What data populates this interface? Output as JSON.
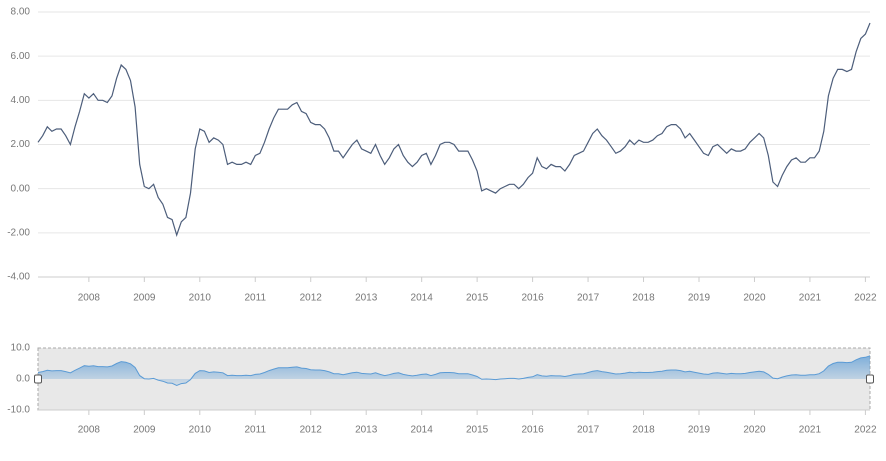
{
  "chart_data": {
    "type": "line",
    "x": [
      2007.083,
      2007.167,
      2007.25,
      2007.333,
      2007.417,
      2007.5,
      2007.583,
      2007.667,
      2007.75,
      2007.833,
      2007.917,
      2008.0,
      2008.083,
      2008.167,
      2008.25,
      2008.333,
      2008.417,
      2008.5,
      2008.583,
      2008.667,
      2008.75,
      2008.833,
      2008.917,
      2009.0,
      2009.083,
      2009.167,
      2009.25,
      2009.333,
      2009.417,
      2009.5,
      2009.583,
      2009.667,
      2009.75,
      2009.833,
      2009.917,
      2010.0,
      2010.083,
      2010.167,
      2010.25,
      2010.333,
      2010.417,
      2010.5,
      2010.583,
      2010.667,
      2010.75,
      2010.833,
      2010.917,
      2011.0,
      2011.083,
      2011.167,
      2011.25,
      2011.333,
      2011.417,
      2011.5,
      2011.583,
      2011.667,
      2011.75,
      2011.833,
      2011.917,
      2012.0,
      2012.083,
      2012.167,
      2012.25,
      2012.333,
      2012.417,
      2012.5,
      2012.583,
      2012.667,
      2012.75,
      2012.833,
      2012.917,
      2013.0,
      2013.083,
      2013.167,
      2013.25,
      2013.333,
      2013.417,
      2013.5,
      2013.583,
      2013.667,
      2013.75,
      2013.833,
      2013.917,
      2014.0,
      2014.083,
      2014.167,
      2014.25,
      2014.333,
      2014.417,
      2014.5,
      2014.583,
      2014.667,
      2014.75,
      2014.833,
      2014.917,
      2015.0,
      2015.083,
      2015.167,
      2015.25,
      2015.333,
      2015.417,
      2015.5,
      2015.583,
      2015.667,
      2015.75,
      2015.833,
      2015.917,
      2016.0,
      2016.083,
      2016.167,
      2016.25,
      2016.333,
      2016.417,
      2016.5,
      2016.583,
      2016.667,
      2016.75,
      2016.833,
      2016.917,
      2017.0,
      2017.083,
      2017.167,
      2017.25,
      2017.333,
      2017.417,
      2017.5,
      2017.583,
      2017.667,
      2017.75,
      2017.833,
      2017.917,
      2018.0,
      2018.083,
      2018.167,
      2018.25,
      2018.333,
      2018.417,
      2018.5,
      2018.583,
      2018.667,
      2018.75,
      2018.833,
      2018.917,
      2019.0,
      2019.083,
      2019.167,
      2019.25,
      2019.333,
      2019.417,
      2019.5,
      2019.583,
      2019.667,
      2019.75,
      2019.833,
      2019.917,
      2020.0,
      2020.083,
      2020.167,
      2020.25,
      2020.333,
      2020.417,
      2020.5,
      2020.583,
      2020.667,
      2020.75,
      2020.833,
      2020.917,
      2021.0,
      2021.083,
      2021.167,
      2021.25,
      2021.333,
      2021.417,
      2021.5,
      2021.583,
      2021.667,
      2021.75,
      2021.833,
      2021.917,
      2022.0,
      2022.083
    ],
    "values": [
      2.1,
      2.4,
      2.8,
      2.6,
      2.7,
      2.7,
      2.4,
      2.0,
      2.8,
      3.5,
      4.3,
      4.1,
      4.3,
      4.0,
      4.0,
      3.9,
      4.2,
      5.0,
      5.6,
      5.4,
      4.9,
      3.7,
      1.1,
      0.1,
      0.0,
      0.2,
      -0.4,
      -0.7,
      -1.3,
      -1.4,
      -2.1,
      -1.5,
      -1.3,
      -0.2,
      1.8,
      2.7,
      2.6,
      2.1,
      2.3,
      2.2,
      2.0,
      1.1,
      1.2,
      1.1,
      1.1,
      1.2,
      1.1,
      1.5,
      1.6,
      2.1,
      2.7,
      3.2,
      3.6,
      3.6,
      3.6,
      3.8,
      3.9,
      3.5,
      3.4,
      3.0,
      2.9,
      2.9,
      2.7,
      2.3,
      1.7,
      1.7,
      1.4,
      1.7,
      2.0,
      2.2,
      1.8,
      1.7,
      1.6,
      2.0,
      1.5,
      1.1,
      1.4,
      1.8,
      2.0,
      1.5,
      1.2,
      1.0,
      1.2,
      1.5,
      1.6,
      1.1,
      1.5,
      2.0,
      2.1,
      2.1,
      2.0,
      1.7,
      1.7,
      1.7,
      1.3,
      0.8,
      -0.1,
      0.0,
      -0.1,
      -0.2,
      0.0,
      0.1,
      0.2,
      0.2,
      0.0,
      0.2,
      0.5,
      0.7,
      1.4,
      1.0,
      0.9,
      1.1,
      1.0,
      1.0,
      0.8,
      1.1,
      1.5,
      1.6,
      1.7,
      2.1,
      2.5,
      2.7,
      2.4,
      2.2,
      1.9,
      1.6,
      1.7,
      1.9,
      2.2,
      2.0,
      2.2,
      2.1,
      2.1,
      2.2,
      2.4,
      2.5,
      2.8,
      2.9,
      2.9,
      2.7,
      2.3,
      2.5,
      2.2,
      1.9,
      1.6,
      1.5,
      1.9,
      2.0,
      1.8,
      1.6,
      1.8,
      1.7,
      1.7,
      1.8,
      2.1,
      2.3,
      2.5,
      2.3,
      1.5,
      0.3,
      0.1,
      0.6,
      1.0,
      1.3,
      1.4,
      1.2,
      1.2,
      1.4,
      1.4,
      1.7,
      2.6,
      4.2,
      5.0,
      5.4,
      5.4,
      5.3,
      5.4,
      6.2,
      6.8,
      7.0,
      7.5
    ],
    "color": "#4d5e7b",
    "xlim": [
      2007.083,
      2022.083
    ],
    "xticks": [
      2008,
      2009,
      2010,
      2011,
      2012,
      2013,
      2014,
      2015,
      2016,
      2017,
      2018,
      2019,
      2020,
      2021,
      2022
    ],
    "ylim": [
      -4,
      8
    ],
    "yticks": [
      {
        "value": 8,
        "label": "8.00"
      },
      {
        "value": 6,
        "label": "6.00"
      },
      {
        "value": 4,
        "label": "4.00"
      },
      {
        "value": 2,
        "label": "2.00"
      },
      {
        "value": 0,
        "label": "0.00"
      },
      {
        "value": -2,
        "label": "-2.00"
      },
      {
        "value": -4,
        "label": "-4.00"
      }
    ],
    "grid": true,
    "navigator": {
      "color": "#5b9bd5",
      "ylim": [
        -10,
        10
      ],
      "yticks": [
        {
          "value": 10,
          "label": "10.0"
        },
        {
          "value": 0,
          "label": "0.0"
        },
        {
          "value": -10,
          "label": "-10.0"
        }
      ]
    }
  }
}
